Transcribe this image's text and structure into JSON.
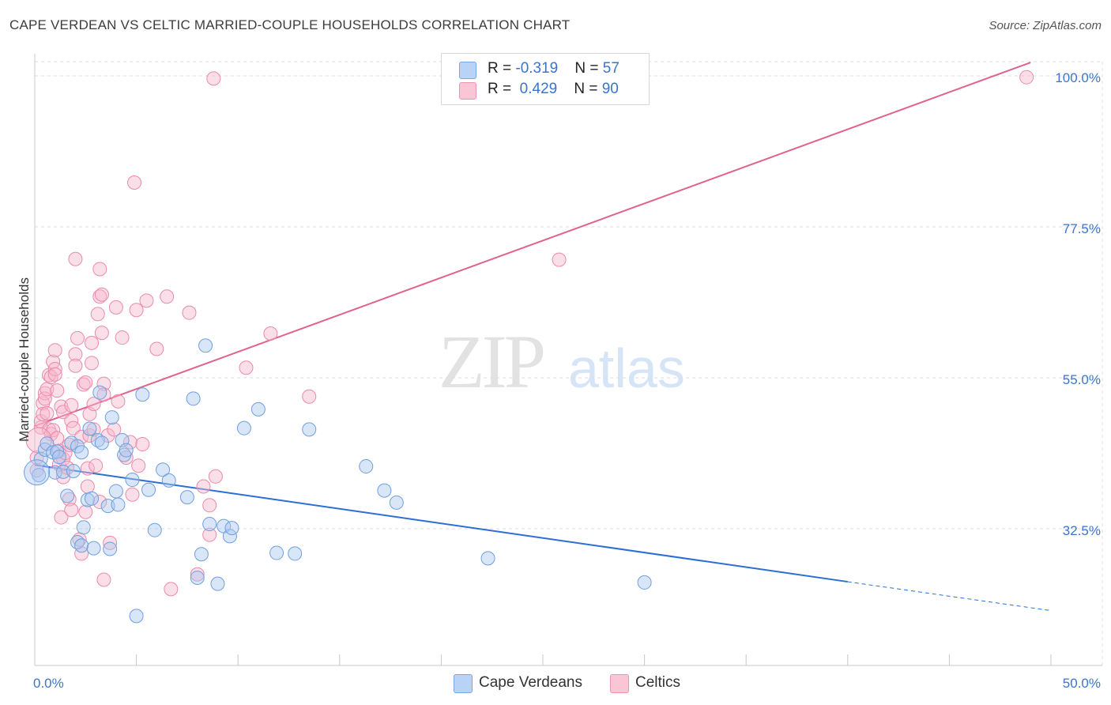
{
  "title": "CAPE VERDEAN VS CELTIC MARRIED-COUPLE HOUSEHOLDS CORRELATION CHART",
  "source": "Source: ZipAtlas.com",
  "watermark": {
    "zip": "ZIP",
    "atlas": "atlas"
  },
  "legend_top": {
    "rows": [
      {
        "r_label": "R = ",
        "r_value": "-0.319",
        "n_label": "N = ",
        "n_value": "57"
      },
      {
        "r_label": "R = ",
        "r_value": "0.429",
        "n_label": "N = ",
        "n_value": "90"
      }
    ]
  },
  "legend_bottom": {
    "items": [
      "Cape Verdeans",
      "Celtics"
    ]
  },
  "colors": {
    "blue_fill": "#a9c8f0",
    "blue_stroke": "#6f9fe0",
    "blue_line": "#2b6fd4",
    "pink_fill": "#f7b9cc",
    "pink_stroke": "#ec8aa9",
    "pink_line": "#e0628d",
    "axis_label": "#3a74cc",
    "grid": "#dddddd"
  },
  "chart_data": {
    "type": "scatter",
    "title": "CAPE VERDEAN VS CELTIC MARRIED-COUPLE HOUSEHOLDS CORRELATION CHART",
    "xlabel": "",
    "ylabel": "Married-couple Households",
    "xlim": [
      0,
      50
    ],
    "ylim": [
      10,
      102
    ],
    "x_tick_labels": [
      "0.0%",
      "50.0%"
    ],
    "y_ticks": [
      32.5,
      55.0,
      77.5,
      100.0
    ],
    "y_tick_labels": [
      "32.5%",
      "55.0%",
      "77.5%",
      "100.0%"
    ],
    "grid": "horizontal dashed",
    "legend_placement": "bottom-center",
    "series": [
      {
        "name": "Cape Verdeans",
        "color": "#a9c8f0",
        "trend": {
          "x": [
            0,
            40,
            50
          ],
          "y": [
            42.0,
            24.6,
            20.3
          ],
          "solid_until_x": 40
        },
        "points": [
          [
            0.2,
            40.5
          ],
          [
            0.3,
            42.9
          ],
          [
            0.5,
            44.3
          ],
          [
            0.6,
            45.2
          ],
          [
            0.9,
            43.9
          ],
          [
            1.0,
            40.9
          ],
          [
            1.1,
            44.0
          ],
          [
            1.2,
            43.2
          ],
          [
            1.4,
            41.0
          ],
          [
            1.6,
            37.4
          ],
          [
            1.8,
            45.3
          ],
          [
            1.9,
            41.1
          ],
          [
            2.1,
            44.8
          ],
          [
            2.1,
            30.5
          ],
          [
            2.3,
            30.0
          ],
          [
            2.3,
            43.9
          ],
          [
            2.4,
            32.7
          ],
          [
            2.6,
            36.8
          ],
          [
            2.7,
            47.4
          ],
          [
            2.8,
            37.0
          ],
          [
            2.9,
            29.6
          ],
          [
            3.1,
            45.7
          ],
          [
            3.2,
            52.8
          ],
          [
            3.3,
            45.3
          ],
          [
            3.6,
            35.9
          ],
          [
            3.7,
            29.5
          ],
          [
            3.8,
            49.1
          ],
          [
            4.0,
            38.1
          ],
          [
            4.1,
            36.1
          ],
          [
            4.3,
            45.7
          ],
          [
            4.4,
            43.5
          ],
          [
            4.5,
            44.2
          ],
          [
            4.8,
            39.8
          ],
          [
            5.0,
            19.5
          ],
          [
            5.3,
            52.5
          ],
          [
            5.6,
            38.3
          ],
          [
            5.9,
            32.3
          ],
          [
            6.3,
            41.3
          ],
          [
            6.6,
            39.7
          ],
          [
            7.5,
            37.2
          ],
          [
            7.8,
            51.9
          ],
          [
            8.0,
            25.2
          ],
          [
            8.2,
            28.7
          ],
          [
            8.4,
            59.8
          ],
          [
            8.6,
            33.2
          ],
          [
            9.0,
            24.3
          ],
          [
            9.3,
            32.9
          ],
          [
            9.6,
            31.4
          ],
          [
            9.7,
            32.6
          ],
          [
            10.3,
            47.5
          ],
          [
            11.0,
            50.3
          ],
          [
            11.9,
            28.9
          ],
          [
            12.8,
            28.8
          ],
          [
            13.5,
            47.3
          ],
          [
            16.3,
            41.8
          ],
          [
            17.2,
            38.2
          ],
          [
            17.8,
            36.4
          ],
          [
            22.3,
            28.1
          ],
          [
            30.0,
            24.5
          ]
        ]
      },
      {
        "name": "Celtics",
        "color": "#f7b9cc",
        "trend": {
          "x": [
            0,
            49
          ],
          "y": [
            47.8,
            102.0
          ]
        },
        "points": [
          [
            0.1,
            43.1
          ],
          [
            0.1,
            41.2
          ],
          [
            0.3,
            47.6
          ],
          [
            0.3,
            48.5
          ],
          [
            0.4,
            51.2
          ],
          [
            0.4,
            49.6
          ],
          [
            0.5,
            52.7
          ],
          [
            0.5,
            51.9
          ],
          [
            0.6,
            53.3
          ],
          [
            0.6,
            49.7
          ],
          [
            0.7,
            55.4
          ],
          [
            0.7,
            47.3
          ],
          [
            0.8,
            55.1
          ],
          [
            0.8,
            46.6
          ],
          [
            0.9,
            57.4
          ],
          [
            0.9,
            47.2
          ],
          [
            1.0,
            56.3
          ],
          [
            1.0,
            55.5
          ],
          [
            1.0,
            59.1
          ],
          [
            1.1,
            46.0
          ],
          [
            1.1,
            53.1
          ],
          [
            1.2,
            44.1
          ],
          [
            1.2,
            42.1
          ],
          [
            1.3,
            34.2
          ],
          [
            1.3,
            50.7
          ],
          [
            1.4,
            49.9
          ],
          [
            1.4,
            42.9
          ],
          [
            1.4,
            40.2
          ],
          [
            1.5,
            43.8
          ],
          [
            1.6,
            41.6
          ],
          [
            1.7,
            45.0
          ],
          [
            1.7,
            36.9
          ],
          [
            1.8,
            48.6
          ],
          [
            1.8,
            50.9
          ],
          [
            1.8,
            35.3
          ],
          [
            1.9,
            47.5
          ],
          [
            2.0,
            58.5
          ],
          [
            2.0,
            56.8
          ],
          [
            2.0,
            72.7
          ],
          [
            2.1,
            60.9
          ],
          [
            2.2,
            30.9
          ],
          [
            2.3,
            28.8
          ],
          [
            2.3,
            46.2
          ],
          [
            2.4,
            54.0
          ],
          [
            2.5,
            54.3
          ],
          [
            2.5,
            35.0
          ],
          [
            2.6,
            41.5
          ],
          [
            2.6,
            38.8
          ],
          [
            2.7,
            46.4
          ],
          [
            2.7,
            49.6
          ],
          [
            2.8,
            57.2
          ],
          [
            2.8,
            60.2
          ],
          [
            2.9,
            47.3
          ],
          [
            2.9,
            51.1
          ],
          [
            3.0,
            41.9
          ],
          [
            3.1,
            64.5
          ],
          [
            3.2,
            67.1
          ],
          [
            3.2,
            71.2
          ],
          [
            3.2,
            36.5
          ],
          [
            3.3,
            61.7
          ],
          [
            3.3,
            67.4
          ],
          [
            3.4,
            54.1
          ],
          [
            3.4,
            24.9
          ],
          [
            3.4,
            52.5
          ],
          [
            3.6,
            46.4
          ],
          [
            3.7,
            30.4
          ],
          [
            3.9,
            47.3
          ],
          [
            4.0,
            65.5
          ],
          [
            4.1,
            51.5
          ],
          [
            4.3,
            61.0
          ],
          [
            4.5,
            43.1
          ],
          [
            4.7,
            45.4
          ],
          [
            4.8,
            37.6
          ],
          [
            4.9,
            84.1
          ],
          [
            5.0,
            65.1
          ],
          [
            5.1,
            41.9
          ],
          [
            5.3,
            45.1
          ],
          [
            5.5,
            66.5
          ],
          [
            6.0,
            59.3
          ],
          [
            6.5,
            67.1
          ],
          [
            6.7,
            23.5
          ],
          [
            7.6,
            64.7
          ],
          [
            8.0,
            25.7
          ],
          [
            8.3,
            38.8
          ],
          [
            8.6,
            31.6
          ],
          [
            8.6,
            36.0
          ],
          [
            8.8,
            99.6
          ],
          [
            8.9,
            40.3
          ],
          [
            10.4,
            56.5
          ],
          [
            11.6,
            61.6
          ],
          [
            13.5,
            52.2
          ],
          [
            25.8,
            72.6
          ],
          [
            48.8,
            99.8
          ]
        ]
      }
    ],
    "large_points": [
      {
        "series": "Cape Verdeans",
        "x": 0.1,
        "y": 40.9
      },
      {
        "series": "Celtics",
        "x": 0.2,
        "y": 45.7
      }
    ]
  }
}
